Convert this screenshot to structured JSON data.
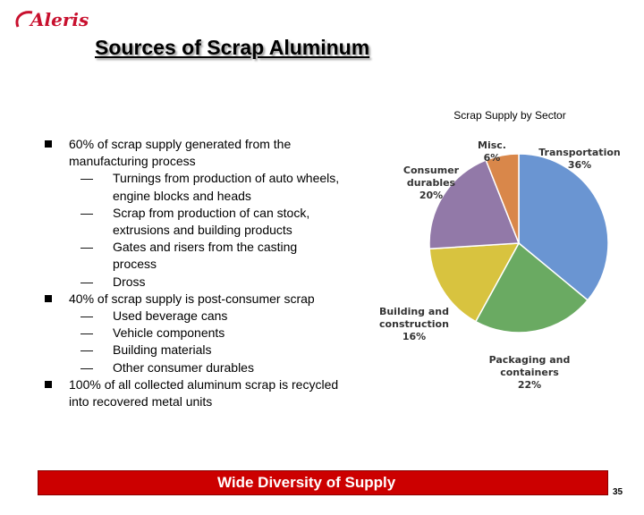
{
  "logo": {
    "text": "Aleris"
  },
  "title": "Sources of Scrap Aluminum",
  "bullets": [
    {
      "text": "60% of scrap supply generated from the manufacturing process",
      "subs": [
        "Turnings from production of auto wheels, engine blocks and heads",
        "Scrap from production of can stock, extrusions and building products",
        "Gates and risers from the casting process",
        "Dross"
      ]
    },
    {
      "text": "40% of scrap supply is post-consumer scrap",
      "subs": [
        "Used beverage cans",
        "Vehicle components",
        "Building materials",
        "Other consumer durables"
      ]
    },
    {
      "text": "100% of all collected aluminum scrap is recycled into recovered metal units",
      "subs": []
    }
  ],
  "sub_bullet_marker": "—",
  "chart_data": {
    "type": "pie",
    "title": "Scrap Supply by Sector",
    "series": [
      {
        "name": "Transportation",
        "value": 36,
        "label": "36%",
        "color": "#6a95d2"
      },
      {
        "name": "Packaging and containers",
        "value": 22,
        "label": "22%",
        "color": "#6aaa62"
      },
      {
        "name": "Building and construction",
        "value": 16,
        "label": "16%",
        "color": "#d8c33f"
      },
      {
        "name": "Consumer durables",
        "value": 20,
        "label": "20%",
        "color": "#9279a8"
      },
      {
        "name": "Misc.",
        "value": 6,
        "label": "6%",
        "color": "#d9874a"
      }
    ],
    "start_angle_deg": 0,
    "direction": "clockwise",
    "legend": "none"
  },
  "banner": {
    "text": "Wide Diversity of Supply",
    "color": "#cc0000"
  },
  "page_number": "35"
}
